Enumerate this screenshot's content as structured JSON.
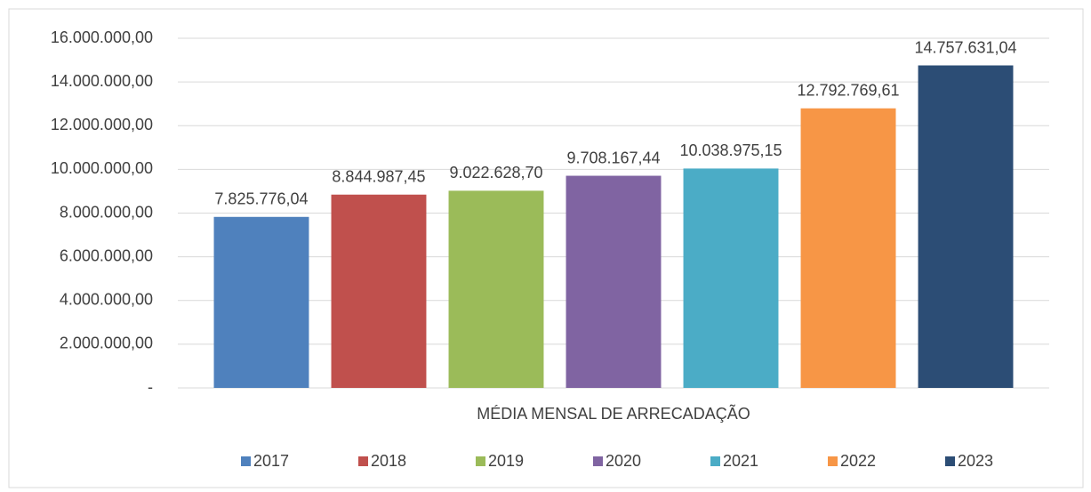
{
  "chart_data": {
    "type": "bar",
    "categories": [
      "MÉDIA MENSAL DE ARRECADAÇÃO"
    ],
    "series": [
      {
        "name": "2017",
        "color": "#4f81bd",
        "values": [
          7825776.04
        ],
        "value_labels": [
          "7.825.776,04"
        ]
      },
      {
        "name": "2018",
        "color": "#c0504d",
        "values": [
          8844987.45
        ],
        "value_labels": [
          "8.844.987,45"
        ]
      },
      {
        "name": "2019",
        "color": "#9bbb59",
        "values": [
          9022628.7
        ],
        "value_labels": [
          "9.022.628,70"
        ]
      },
      {
        "name": "2020",
        "color": "#8064a2",
        "values": [
          9708167.44
        ],
        "value_labels": [
          "9.708.167,44"
        ]
      },
      {
        "name": "2021",
        "color": "#4bacc6",
        "values": [
          10038975.15
        ],
        "value_labels": [
          "10.038.975,15"
        ]
      },
      {
        "name": "2022",
        "color": "#f79646",
        "values": [
          12792769.61
        ],
        "value_labels": [
          "12.792.769,61"
        ]
      },
      {
        "name": "2023",
        "color": "#2c4d75",
        "values": [
          14757631.04
        ],
        "value_labels": [
          "14.757.631,04"
        ]
      }
    ],
    "ylim": [
      0,
      16000000
    ],
    "yticks": [
      {
        "value": 0,
        "label": "-"
      },
      {
        "value": 2000000,
        "label": "2.000.000,00"
      },
      {
        "value": 4000000,
        "label": "4.000.000,00"
      },
      {
        "value": 6000000,
        "label": "6.000.000,00"
      },
      {
        "value": 8000000,
        "label": "8.000.000,00"
      },
      {
        "value": 10000000,
        "label": "10.000.000,00"
      },
      {
        "value": 12000000,
        "label": "12.000.000,00"
      },
      {
        "value": 14000000,
        "label": "14.000.000,00"
      },
      {
        "value": 16000000,
        "label": "16.000.000,00"
      }
    ],
    "grid": true,
    "legend": "bottom"
  }
}
